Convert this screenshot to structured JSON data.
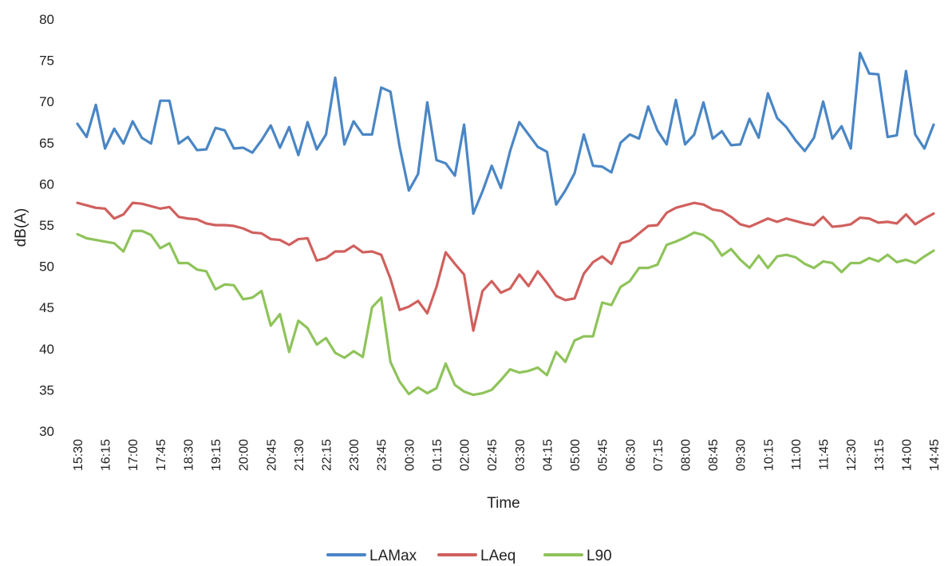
{
  "chart_data": {
    "type": "line",
    "title": "",
    "xlabel": "Time",
    "ylabel": "dB(A)",
    "ylim": [
      30,
      80
    ],
    "yticks": [
      30,
      35,
      40,
      45,
      50,
      55,
      60,
      65,
      70,
      75,
      80
    ],
    "grid": false,
    "legend_position": "bottom-center",
    "x_tick_labels": [
      "15:30",
      "16:15",
      "17:00",
      "17:45",
      "18:30",
      "19:15",
      "20:00",
      "20:45",
      "21:30",
      "22:15",
      "23:00",
      "23:45",
      "00:30",
      "01:15",
      "02:00",
      "02:45",
      "03:30",
      "04:15",
      "05:00",
      "05:45",
      "06:30",
      "07:15",
      "08:00",
      "08:45",
      "09:30",
      "10:15",
      "11:00",
      "11:45",
      "12:30",
      "13:15",
      "14:00",
      "14:45"
    ],
    "series": [
      {
        "name": "LAMax",
        "color": "#4A86C5",
        "values": [
          67.3,
          65.7,
          69.6,
          64.3,
          66.7,
          64.9,
          67.6,
          65.6,
          64.9,
          70.1,
          70.1,
          64.9,
          65.7,
          64.1,
          64.2,
          66.8,
          66.5,
          64.3,
          64.4,
          63.8,
          65.3,
          67.1,
          64.4,
          66.9,
          63.5,
          67.5,
          64.2,
          66.0,
          72.9,
          64.8,
          67.6,
          66.0,
          66.0,
          71.7,
          71.2,
          64.5,
          59.2,
          61.2,
          69.9,
          62.9,
          62.5,
          61.0,
          67.2,
          56.4,
          59.1,
          62.2,
          59.5,
          64.0,
          67.5,
          66.0,
          64.5,
          63.9,
          57.5,
          59.2,
          61.3,
          66.0,
          62.2,
          62.1,
          61.4,
          65.0,
          66.0,
          65.5,
          69.4,
          66.5,
          64.8,
          70.2,
          64.8,
          66.0,
          69.9,
          65.5,
          66.4,
          64.7,
          64.8,
          67.9,
          65.6,
          71.0,
          68.0,
          66.9,
          65.3,
          64.0,
          65.6,
          70.0,
          65.5,
          67.0,
          64.3,
          75.9,
          73.4,
          73.3,
          65.7,
          65.9,
          73.7,
          66.0,
          64.3,
          67.2
        ]
      },
      {
        "name": "LAeq",
        "color": "#D0605E",
        "values": [
          57.7,
          57.4,
          57.1,
          57.0,
          55.8,
          56.3,
          57.7,
          57.6,
          57.3,
          57.0,
          57.2,
          56.0,
          55.8,
          55.7,
          55.2,
          55.0,
          55.0,
          54.9,
          54.6,
          54.1,
          54.0,
          53.3,
          53.2,
          52.6,
          53.3,
          53.4,
          50.7,
          51.0,
          51.8,
          51.8,
          52.5,
          51.7,
          51.8,
          51.4,
          48.5,
          44.7,
          45.1,
          45.8,
          44.3,
          47.5,
          51.7,
          50.3,
          49.0,
          42.2,
          47.0,
          48.2,
          46.8,
          47.3,
          49.0,
          47.6,
          49.4,
          48.0,
          46.4,
          45.9,
          46.1,
          49.1,
          50.5,
          51.2,
          50.3,
          52.8,
          53.1,
          54.0,
          54.9,
          55.0,
          56.5,
          57.1,
          57.4,
          57.7,
          57.5,
          56.9,
          56.7,
          56.0,
          55.1,
          54.8,
          55.3,
          55.8,
          55.4,
          55.8,
          55.5,
          55.2,
          55.0,
          56.0,
          54.8,
          54.9,
          55.1,
          55.9,
          55.8,
          55.3,
          55.4,
          55.2,
          56.3,
          55.1,
          55.8,
          56.4
        ]
      },
      {
        "name": "L90",
        "color": "#8FC35A",
        "values": [
          53.9,
          53.4,
          53.2,
          53.0,
          52.8,
          51.8,
          54.3,
          54.3,
          53.8,
          52.2,
          52.8,
          50.4,
          50.4,
          49.6,
          49.4,
          47.2,
          47.8,
          47.7,
          46.0,
          46.2,
          47.0,
          42.8,
          44.2,
          39.6,
          43.4,
          42.5,
          40.5,
          41.3,
          39.5,
          38.9,
          39.7,
          39.0,
          45.0,
          46.2,
          38.4,
          36.0,
          34.5,
          35.3,
          34.6,
          35.2,
          38.2,
          35.6,
          34.8,
          34.4,
          34.6,
          35.0,
          36.2,
          37.5,
          37.1,
          37.3,
          37.7,
          36.8,
          39.6,
          38.4,
          41.0,
          41.5,
          41.5,
          45.6,
          45.3,
          47.5,
          48.2,
          49.8,
          49.8,
          50.2,
          52.6,
          53.0,
          53.5,
          54.1,
          53.8,
          53.0,
          51.3,
          52.1,
          50.8,
          49.8,
          51.3,
          49.8,
          51.2,
          51.4,
          51.1,
          50.3,
          49.8,
          50.6,
          50.4,
          49.3,
          50.4,
          50.4,
          51.0,
          50.6,
          51.4,
          50.5,
          50.8,
          50.4,
          51.2,
          51.9
        ]
      }
    ]
  }
}
